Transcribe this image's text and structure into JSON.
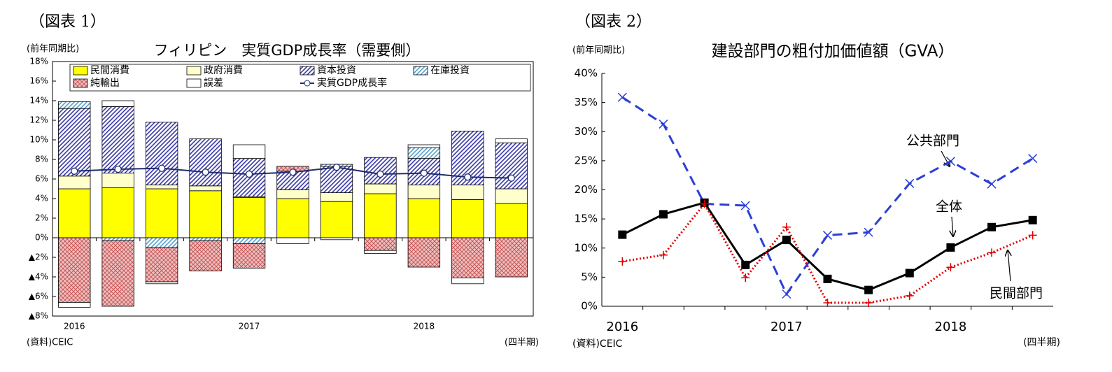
{
  "chart_data": [
    {
      "type": "bar",
      "stacked": true,
      "figure_label": "（図表 1）",
      "title": "フィリピン　実質GDP成長率（需要側）",
      "y_unit": "(前年同期比)",
      "source": "(資料)CEIC",
      "x_unit": "(四半期)",
      "categories": [
        "2016",
        null,
        null,
        null,
        "2017",
        null,
        null,
        null,
        "2018",
        null,
        null
      ],
      "ylim": [
        -8,
        18
      ],
      "yticks": [
        {
          "value": -8,
          "label": "▲8%"
        },
        {
          "value": -6,
          "label": "▲6%"
        },
        {
          "value": -4,
          "label": "▲4%"
        },
        {
          "value": -2,
          "label": "▲2%"
        },
        {
          "value": 0,
          "label": "0%"
        },
        {
          "value": 2,
          "label": "2%"
        },
        {
          "value": 4,
          "label": "4%"
        },
        {
          "value": 6,
          "label": "6%"
        },
        {
          "value": 8,
          "label": "8%"
        },
        {
          "value": 10,
          "label": "10%"
        },
        {
          "value": 12,
          "label": "12%"
        },
        {
          "value": 14,
          "label": "14%"
        },
        {
          "value": 16,
          "label": "16%"
        },
        {
          "value": 18,
          "label": "18%"
        }
      ],
      "grid": false,
      "series": [
        {
          "name": "民間消費",
          "color": "#ffff00",
          "pattern": "solid",
          "values": [
            5.0,
            5.1,
            5.0,
            4.8,
            4.1,
            4.0,
            3.7,
            4.5,
            4.0,
            3.9,
            3.5
          ]
        },
        {
          "name": "政府消費",
          "color": "#ffffcc",
          "pattern": "solid",
          "values": [
            1.3,
            1.5,
            0.4,
            0.5,
            0.1,
            0.9,
            0.9,
            1.0,
            1.4,
            1.5,
            1.5
          ]
        },
        {
          "name": "資本投資",
          "color": "#3a3aa8",
          "pattern": "diagonal",
          "values": [
            6.9,
            6.8,
            6.4,
            4.8,
            3.9,
            1.9,
            2.7,
            2.7,
            2.7,
            5.5,
            4.7
          ]
        },
        {
          "name": "在庫投資",
          "color": "#5aa0c8",
          "pattern": "diagonal",
          "values": [
            0.7,
            -0.3,
            -1.0,
            -0.3,
            -0.6,
            0,
            0.2,
            0,
            1.1,
            0,
            0
          ]
        },
        {
          "name": "純輸出",
          "color": "#c05050",
          "pattern": "crosshatch",
          "values": [
            -6.6,
            -6.7,
            -3.5,
            -3.1,
            -2.5,
            0.5,
            0,
            -1.3,
            -3.0,
            -4.1,
            -4.0
          ]
        },
        {
          "name": "誤差",
          "color": "#ffffff",
          "pattern": "solid",
          "values": [
            -0.5,
            0.6,
            -0.2,
            0,
            1.4,
            -0.6,
            -0.2,
            -0.3,
            0.3,
            -0.6,
            0.4
          ]
        },
        {
          "name": "実質GDP成長率",
          "type": "line",
          "color": "#1f2d6e",
          "marker": "circle",
          "dash": "solid",
          "values": [
            6.8,
            7.0,
            7.1,
            6.7,
            6.5,
            6.7,
            7.2,
            6.5,
            6.6,
            6.2,
            6.1
          ]
        }
      ],
      "legend": "top"
    },
    {
      "type": "line",
      "figure_label": "（図表 2）",
      "title": "建設部門の粗付加価値額（GVA）",
      "y_unit": "(前年同期比)",
      "source": "(資料)CEIC",
      "x_unit": "(四半期)",
      "categories": [
        "2016",
        null,
        null,
        null,
        "2017",
        null,
        null,
        null,
        "2018",
        null,
        null
      ],
      "ylim": [
        0,
        40
      ],
      "yticks": [
        {
          "value": 0,
          "label": "0%"
        },
        {
          "value": 5,
          "label": "5%"
        },
        {
          "value": 10,
          "label": "10%"
        },
        {
          "value": 15,
          "label": "15%"
        },
        {
          "value": 20,
          "label": "20%"
        },
        {
          "value": 25,
          "label": "25%"
        },
        {
          "value": 30,
          "label": "30%"
        },
        {
          "value": 35,
          "label": "35%"
        },
        {
          "value": 40,
          "label": "40%"
        }
      ],
      "grid": false,
      "series": [
        {
          "name": "公共部門",
          "color": "#2b3fd6",
          "marker": "x",
          "dash": "dashed",
          "values": [
            35.9,
            31.3,
            17.6,
            17.3,
            2.1,
            12.2,
            12.7,
            21.1,
            24.9,
            21.0,
            25.4
          ]
        },
        {
          "name": "全体",
          "color": "#000000",
          "marker": "square",
          "dash": "solid",
          "values": [
            12.3,
            15.8,
            17.8,
            7.1,
            11.4,
            4.7,
            2.8,
            5.7,
            10.1,
            13.6,
            14.8
          ]
        },
        {
          "name": "民間部門",
          "color": "#e00000",
          "marker": "plus",
          "dash": "dotted",
          "values": [
            7.7,
            8.8,
            17.6,
            4.9,
            13.6,
            0.6,
            0.6,
            1.8,
            6.7,
            9.2,
            12.2
          ]
        }
      ]
    }
  ]
}
